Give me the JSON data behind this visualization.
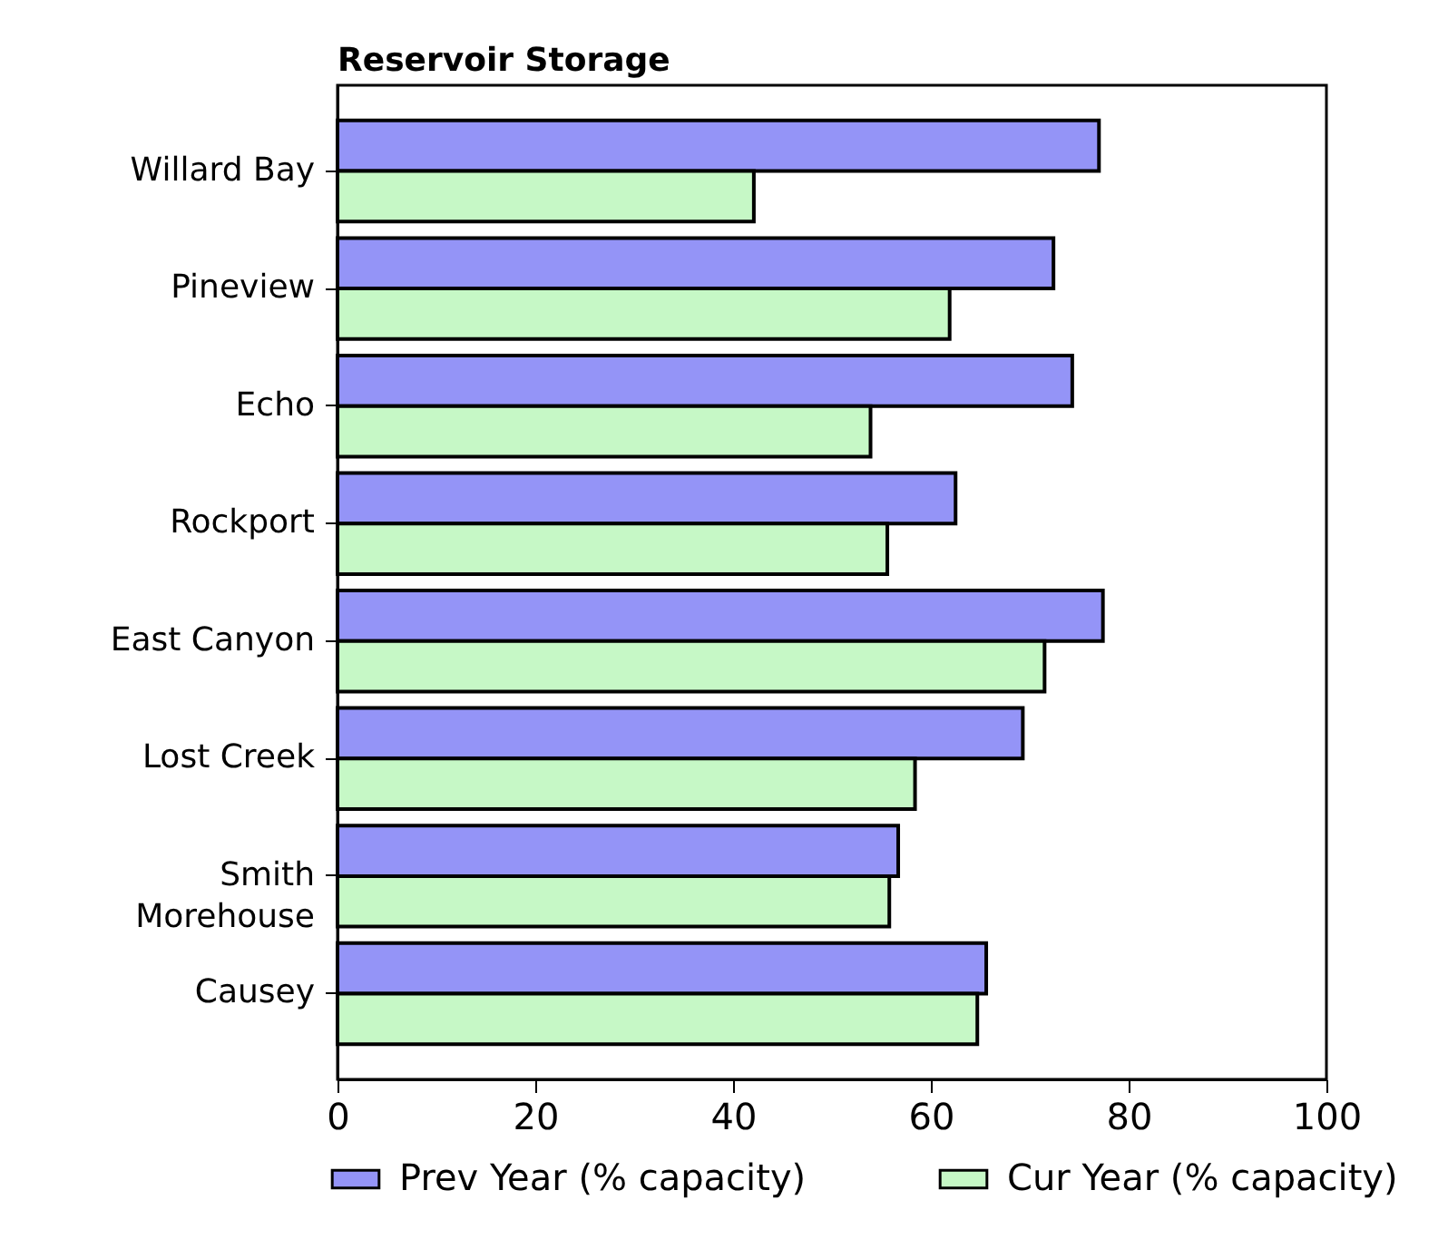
{
  "chart_data": {
    "type": "bar",
    "orientation": "horizontal",
    "title": "Reservoir Storage",
    "categories": [
      "Willard Bay",
      "Pineview",
      "Echo",
      "Rockport",
      "East Canyon",
      "Lost Creek",
      "Smith Morehouse",
      "Causey"
    ],
    "series": [
      {
        "name": "Prev Year (% capacity)",
        "color": "#9494f7",
        "values": [
          77.0,
          72.4,
          74.3,
          62.5,
          77.4,
          69.3,
          56.7,
          65.6
        ]
      },
      {
        "name": "Cur Year (% capacity)",
        "color": "#c6f8c6",
        "values": [
          42.1,
          61.9,
          53.9,
          55.6,
          71.5,
          58.4,
          55.8,
          64.7
        ]
      }
    ],
    "xlim": [
      0,
      100
    ],
    "xticks": [
      0,
      20,
      40,
      60,
      80,
      100
    ],
    "legend": "bottom"
  }
}
